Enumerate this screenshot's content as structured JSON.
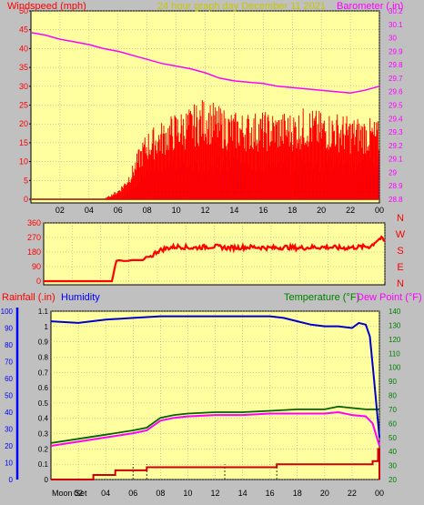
{
  "header": {
    "left_label": "Windspeed (mph)",
    "title": "24 hour graph day   December 11 2021",
    "right_label": "Barometer (.in)"
  },
  "colors": {
    "background": "#c0c0c0",
    "plot_bg": "#ffffa0",
    "wind_gust": "#ff0000",
    "wind_avg": "#0000ff",
    "wind_low": "#008000",
    "barometer": "#ff00ff",
    "direction": "#ff0000",
    "rain": "#cc0000",
    "humidity": "#0000cc",
    "temperature": "#006400",
    "dewpoint": "#ff00ff",
    "title": "#c8c800",
    "axis_red": "#ff0000",
    "axis_blue": "#0000ff",
    "axis_green": "#008000",
    "axis_magenta": "#ff00ff"
  },
  "chart_data": [
    {
      "type": "area",
      "name": "wind",
      "xlabel": "",
      "x_ticks": [
        "02",
        "04",
        "06",
        "08",
        "10",
        "12",
        "14",
        "16",
        "18",
        "20",
        "22",
        "00"
      ],
      "xlim": [
        0,
        24
      ],
      "ylim_left": [
        0,
        50
      ],
      "y_ticks_left": [
        0,
        5,
        10,
        15,
        20,
        25,
        30,
        35,
        40,
        45,
        50
      ],
      "ylim_right": [
        28.8,
        30.2
      ],
      "y_ticks_right": [
        "28.8",
        "28.9",
        "29",
        "29.1",
        "29.2",
        "29.3",
        "29.4",
        "29.5",
        "29.6",
        "29.7",
        "29.8",
        "29.9",
        "30",
        "30.1",
        "30.2"
      ],
      "series": [
        {
          "role": "gust",
          "x": [
            0,
            5,
            5.5,
            6,
            6.5,
            7,
            7.5,
            8,
            9,
            10,
            11,
            12,
            13,
            14,
            15,
            16,
            17,
            18,
            19,
            20,
            21,
            22,
            23,
            24
          ],
          "y": [
            0,
            0,
            1,
            2,
            4,
            7,
            11,
            14,
            16,
            18,
            19,
            21,
            19,
            18,
            18,
            18,
            18,
            18,
            19,
            18,
            18,
            17,
            17,
            16
          ]
        },
        {
          "role": "average",
          "x": [
            0,
            6,
            6.5,
            7,
            7.5,
            8,
            9,
            10,
            11,
            12,
            13,
            14,
            15,
            16,
            17,
            18,
            19,
            20,
            21,
            22,
            23,
            24
          ],
          "y": [
            0,
            0,
            1,
            3,
            5,
            7,
            8,
            9,
            9,
            9,
            9,
            9,
            8,
            9,
            9,
            9,
            9,
            9,
            9,
            8,
            9,
            9
          ]
        },
        {
          "role": "low",
          "x": [
            0,
            6.5,
            7,
            7.5,
            8,
            9,
            10,
            11,
            12,
            13,
            14,
            15,
            16,
            17,
            18,
            19,
            20,
            21,
            22,
            23,
            24
          ],
          "y": [
            0,
            0,
            1,
            2,
            3,
            4,
            5,
            5,
            5,
            5,
            5,
            4,
            5,
            5,
            5,
            5,
            5,
            5,
            4,
            5,
            5
          ]
        },
        {
          "role": "barometer",
          "axis": "right",
          "x": [
            0,
            1,
            2,
            3,
            4,
            5,
            6,
            7,
            8,
            9,
            10,
            11,
            12,
            13,
            14,
            15,
            16,
            17,
            18,
            19,
            20,
            21,
            22,
            23,
            24
          ],
          "y": [
            30.04,
            30.02,
            29.99,
            29.97,
            29.95,
            29.92,
            29.9,
            29.87,
            29.84,
            29.81,
            29.79,
            29.77,
            29.74,
            29.7,
            29.68,
            29.67,
            29.66,
            29.64,
            29.63,
            29.62,
            29.61,
            29.6,
            29.59,
            29.61,
            29.64
          ]
        }
      ]
    },
    {
      "type": "line",
      "name": "wind_direction",
      "x_ticks": [
        "02",
        "04",
        "06",
        "08",
        "10",
        "12",
        "14",
        "16",
        "18",
        "20",
        "22",
        "00"
      ],
      "xlim": [
        0,
        24
      ],
      "ylim": [
        0,
        360
      ],
      "y_ticks": [
        0,
        90,
        180,
        270,
        360
      ],
      "compass": [
        "N",
        "W",
        "S",
        "E",
        "N"
      ],
      "series": [
        {
          "role": "direction",
          "x": [
            0,
            4.8,
            5.1,
            5.3,
            5.6,
            5.9,
            6.2,
            7,
            7.2,
            7.5,
            8,
            8.5,
            9,
            9.5,
            10,
            10.5,
            11,
            12,
            13,
            14,
            15,
            16,
            17,
            18,
            19,
            20,
            21,
            22,
            23,
            23.4,
            23.7,
            24
          ],
          "y": [
            0,
            0,
            125,
            130,
            125,
            125,
            130,
            130,
            150,
            150,
            185,
            200,
            210,
            215,
            210,
            205,
            210,
            215,
            205,
            210,
            210,
            205,
            210,
            205,
            210,
            210,
            205,
            210,
            215,
            250,
            265,
            245
          ]
        }
      ]
    },
    {
      "type": "line",
      "name": "rain_humidity_temp",
      "header_left": "Rainfall (.in)",
      "header_mid": "Humidity",
      "header_temp": "Temperature (°F)",
      "header_dew": "Dew Point (°F)",
      "moon_label": "Moon Set",
      "x_ticks": [
        "02",
        "04",
        "06",
        "08",
        "10",
        "12",
        "14",
        "16",
        "18",
        "20",
        "22",
        "00"
      ],
      "xlim": [
        0,
        24
      ],
      "ylim_left": [
        0,
        1.1
      ],
      "y_ticks_left": [
        "0",
        "0.1",
        "0.2",
        "0.3",
        "0.4",
        "0.5",
        "0.6",
        "0.7",
        "0.8",
        "0.9",
        "1",
        "1.1"
      ],
      "ylim_humidity": [
        0,
        100
      ],
      "y_ticks_humidity": [
        0,
        10,
        20,
        30,
        40,
        50,
        60,
        70,
        80,
        90,
        100
      ],
      "ylim_right": [
        20,
        140
      ],
      "y_ticks_right": [
        20,
        30,
        40,
        50,
        60,
        70,
        80,
        90,
        100,
        110,
        120,
        130,
        140
      ],
      "series": [
        {
          "role": "humidity",
          "axis": "humidity",
          "x": [
            0,
            2,
            4,
            6,
            8,
            10,
            12,
            14,
            16,
            17,
            18,
            19,
            20,
            21,
            22,
            22.5,
            23,
            23.3,
            23.6,
            24
          ],
          "y": [
            94,
            93,
            95,
            96,
            97,
            97,
            97,
            97,
            97,
            96,
            94,
            92,
            91,
            91,
            90,
            93,
            92,
            85,
            60,
            25
          ]
        },
        {
          "role": "temperature",
          "axis": "right",
          "x": [
            0,
            2,
            4,
            6,
            7,
            8,
            9,
            10,
            12,
            14,
            16,
            18,
            20,
            21,
            22,
            23,
            24
          ],
          "y": [
            46,
            49,
            52,
            55,
            57,
            64,
            66,
            67,
            68,
            68,
            69,
            70,
            70,
            72,
            71,
            70,
            70
          ]
        },
        {
          "role": "dewpoint",
          "axis": "right",
          "x": [
            0,
            2,
            4,
            6,
            7,
            8,
            9,
            10,
            12,
            14,
            16,
            18,
            20,
            21,
            22,
            23,
            23.5,
            24
          ],
          "y": [
            44,
            47,
            50,
            53,
            55,
            62,
            64,
            65,
            66,
            66,
            67,
            67,
            67,
            68,
            66,
            65,
            60,
            44
          ]
        },
        {
          "role": "rainfall",
          "axis": "left",
          "step": true,
          "x": [
            0,
            2.9,
            3.1,
            4.4,
            4.7,
            7,
            12.5,
            16.5,
            22.5,
            23.5,
            23.9,
            24
          ],
          "y": [
            0,
            0,
            0.03,
            0.03,
            0.06,
            0.08,
            0.08,
            0.1,
            0.1,
            0.12,
            0.2,
            0
          ]
        }
      ],
      "events": [
        6,
        7,
        12.7,
        16.5
      ]
    }
  ]
}
